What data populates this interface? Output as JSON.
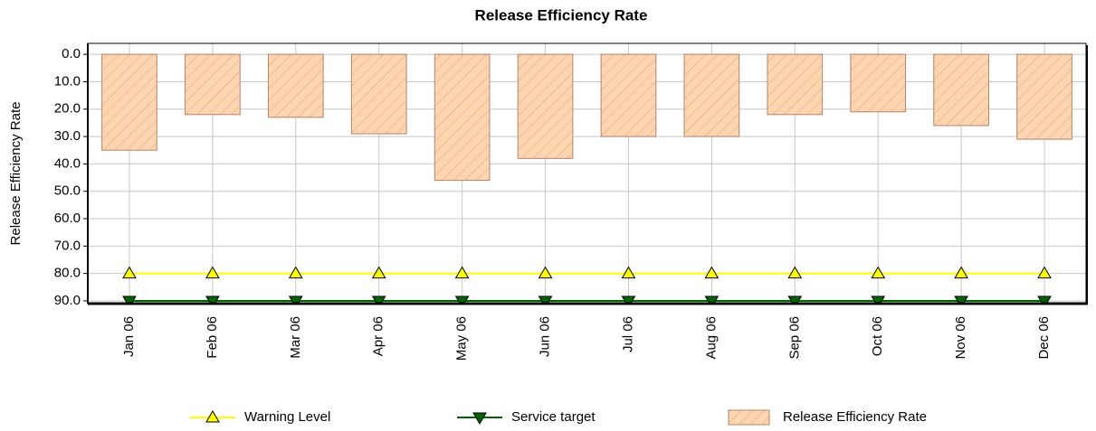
{
  "chart_data": {
    "type": "bar",
    "title": "Release Efficiency Rate",
    "y_label": "Release Efficiency Rate",
    "categories": [
      "Jan 06",
      "Feb 06",
      "Mar 06",
      "Apr 06",
      "May 06",
      "Jun 06",
      "Jul 06",
      "Aug 06",
      "Sep 06",
      "Oct 06",
      "Nov 06",
      "Dec 06"
    ],
    "series": [
      {
        "name": "Warning Level",
        "type": "line",
        "marker": "triangle-up",
        "color": "#ffff00",
        "marker_color": "#ffff00",
        "values": [
          80,
          80,
          80,
          80,
          80,
          80,
          80,
          80,
          80,
          80,
          80,
          80
        ]
      },
      {
        "name": "Service target",
        "type": "line",
        "marker": "triangle-down",
        "color": "#006400",
        "marker_color": "#006400",
        "values": [
          90,
          90,
          90,
          90,
          90,
          90,
          90,
          90,
          90,
          90,
          90,
          90
        ]
      },
      {
        "name": "Release Efficiency Rate",
        "type": "bar",
        "color": "#fdd5b0",
        "edge_color": "#b5836a",
        "hatch": true,
        "values": [
          35,
          22,
          23,
          29,
          46,
          38,
          30,
          30,
          22,
          21,
          26,
          31
        ]
      }
    ],
    "ylim": [
      -4,
      91
    ],
    "y_inverted": true,
    "yticks": [
      {
        "value": 0,
        "label": "0.0"
      },
      {
        "value": 10,
        "label": "10.0"
      },
      {
        "value": 20,
        "label": "20.0"
      },
      {
        "value": 30,
        "label": "30.0"
      },
      {
        "value": 40,
        "label": "40.0"
      },
      {
        "value": 50,
        "label": "50.0"
      },
      {
        "value": 60,
        "label": "60.0"
      },
      {
        "value": 70,
        "label": "70.0"
      },
      {
        "value": 80,
        "label": "80.0"
      },
      {
        "value": 90,
        "label": "90.0"
      }
    ],
    "grid": true,
    "legend": "bottom"
  }
}
